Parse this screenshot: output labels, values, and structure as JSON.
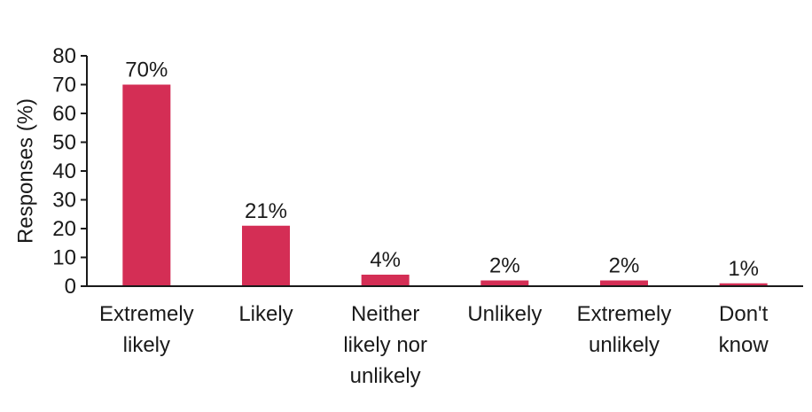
{
  "chart_data": {
    "type": "bar",
    "categories": [
      [
        "Extremely",
        "likely"
      ],
      [
        "Likely"
      ],
      [
        "Neither",
        "likely nor",
        "unlikely"
      ],
      [
        "Unlikely"
      ],
      [
        "Extremely",
        "unlikely"
      ],
      [
        "Don't",
        "know"
      ]
    ],
    "values": [
      70,
      21,
      4,
      2,
      2,
      1
    ],
    "data_labels": [
      "70%",
      "21%",
      "4%",
      "2%",
      "2%",
      "1%"
    ],
    "title": "",
    "xlabel": "",
    "ylabel": "Responses (%)",
    "ylim": [
      0,
      80
    ],
    "yticks": [
      0,
      10,
      20,
      30,
      40,
      50,
      60,
      70,
      80
    ],
    "grid": false,
    "bar_color": "#d42e55",
    "axis_color": "#1a1a1a"
  }
}
